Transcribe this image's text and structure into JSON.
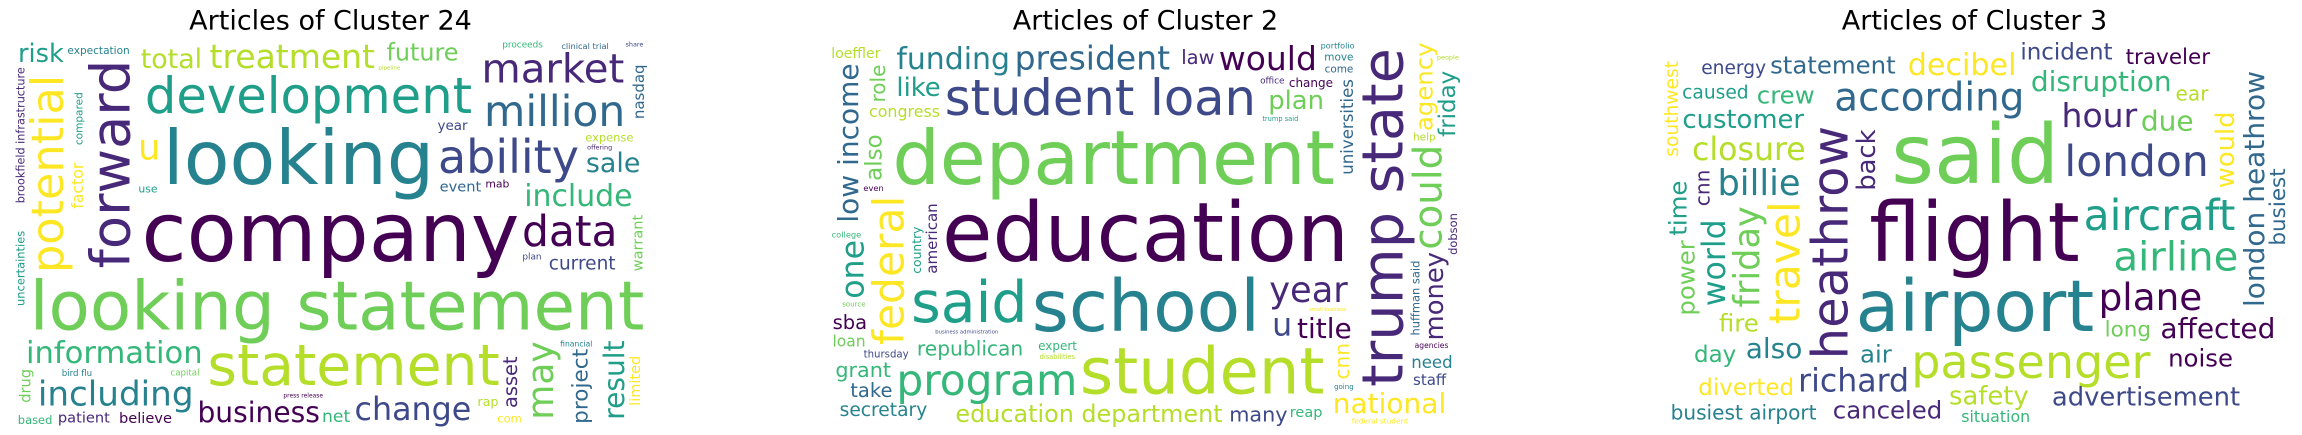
{
  "chart_data": [
    {
      "type": "wordcloud",
      "title": "Articles of Cluster 24",
      "categories": [
        "company",
        "looking statement",
        "looking",
        "forward",
        "statement",
        "development",
        "ability",
        "potential",
        "information",
        "million",
        "data",
        "may",
        "including",
        "market",
        "treatment",
        "result",
        "change",
        "u",
        "include",
        "project",
        "business",
        "future",
        "sale",
        "asset",
        "total",
        "risk",
        "current",
        "factor",
        "net",
        "event",
        "believe",
        "warrant",
        "expectation",
        "patient",
        "expense",
        "uncertainties",
        "year",
        "com",
        "based",
        "nasdaq",
        "mab",
        "capital",
        "bird flu",
        "brookfield infrastructure",
        "rap",
        "use",
        "plan",
        "limited",
        "proceeds",
        "clinical trial",
        "press release",
        "drug",
        "financial",
        "offering",
        "pipeline",
        "compared",
        "share"
      ],
      "values": [
        100,
        80,
        90,
        75,
        65,
        55,
        50,
        48,
        45,
        45,
        45,
        45,
        42,
        42,
        40,
        40,
        38,
        35,
        35,
        35,
        32,
        32,
        30,
        30,
        30,
        28,
        28,
        28,
        25,
        25,
        25,
        25,
        25,
        25,
        22,
        22,
        22,
        22,
        22,
        20,
        20,
        18,
        18,
        16,
        15,
        15,
        14,
        14,
        14,
        12,
        12,
        10,
        10,
        10,
        10,
        10,
        10
      ],
      "palette": [
        "#440154",
        "#482878",
        "#3e4989",
        "#31688e",
        "#26828e",
        "#1f9e89",
        "#35b779",
        "#6ece58",
        "#b5de2b",
        "#fde725"
      ]
    },
    {
      "type": "wordcloud",
      "title": "Articles of Cluster 2",
      "categories": [
        "education",
        "department",
        "school",
        "trump state",
        "student",
        "said",
        "student loan",
        "federal",
        "program",
        "president",
        "would",
        "could",
        "funding",
        "year",
        "education department",
        "one",
        "u",
        "national",
        "republican",
        "low income",
        "title",
        "plan",
        "secretary",
        "money",
        "congress",
        "like",
        "many",
        "agency",
        "grant",
        "take",
        "change",
        "also",
        "need",
        "law",
        "loeffler",
        "friday",
        "thursday",
        "federal student",
        "expert",
        "universities",
        "sba",
        "loan",
        "portfolio",
        "american",
        "disabilities",
        "trump said",
        "staff",
        "cnn",
        "reap",
        "come",
        "agencies",
        "role",
        "move",
        "office",
        "help",
        "country",
        "business administration",
        "small business",
        "college",
        "huffman said",
        "even",
        "source",
        "going",
        "dobson",
        "people"
      ],
      "values": [
        100,
        90,
        85,
        80,
        75,
        65,
        55,
        45,
        45,
        40,
        40,
        40,
        35,
        35,
        32,
        30,
        30,
        25,
        25,
        25,
        25,
        22,
        22,
        22,
        22,
        22,
        20,
        20,
        20,
        18,
        18,
        18,
        18,
        18,
        18,
        18,
        18,
        18,
        18,
        18,
        18,
        16,
        16,
        15,
        15,
        15,
        15,
        14,
        14,
        14,
        14,
        14,
        14,
        14,
        14,
        14,
        13,
        12,
        12,
        12,
        12,
        12,
        12,
        12,
        10
      ],
      "palette": [
        "#440154",
        "#482878",
        "#3e4989",
        "#31688e",
        "#26828e",
        "#1f9e89",
        "#35b779",
        "#6ece58",
        "#b5de2b",
        "#fde725"
      ]
    },
    {
      "type": "wordcloud",
      "title": "Articles of Cluster 3",
      "categories": [
        "flight",
        "said",
        "airport",
        "heathrow",
        "passenger",
        "aircraft",
        "london",
        "travel",
        "airline",
        "according",
        "plane",
        "friday",
        "billie",
        "hour",
        "closure",
        "world",
        "richard",
        "decibel",
        "disruption",
        "london heathrow",
        "affected",
        "due",
        "also",
        "back",
        "safety",
        "customer",
        "advertisement",
        "would",
        "crew",
        "statement",
        "noise",
        "power",
        "air",
        "canceled",
        "fire",
        "time",
        "incident",
        "diverted",
        "day",
        "busiest",
        "traveler",
        "long",
        "busiest airport",
        "cnn",
        "ear",
        "caused",
        "energy",
        "southwest",
        "situation"
      ],
      "values": [
        100,
        100,
        85,
        55,
        50,
        45,
        45,
        45,
        42,
        40,
        38,
        35,
        35,
        32,
        30,
        30,
        30,
        28,
        25,
        25,
        25,
        25,
        25,
        22,
        22,
        22,
        22,
        22,
        20,
        20,
        20,
        20,
        20,
        20,
        20,
        20,
        18,
        18,
        18,
        16,
        16,
        16,
        14,
        14,
        14,
        12,
        12,
        12,
        12
      ],
      "palette": [
        "#440154",
        "#482878",
        "#3e4989",
        "#31688e",
        "#26828e",
        "#1f9e89",
        "#35b779",
        "#6ece58",
        "#b5de2b",
        "#fde725"
      ]
    }
  ]
}
